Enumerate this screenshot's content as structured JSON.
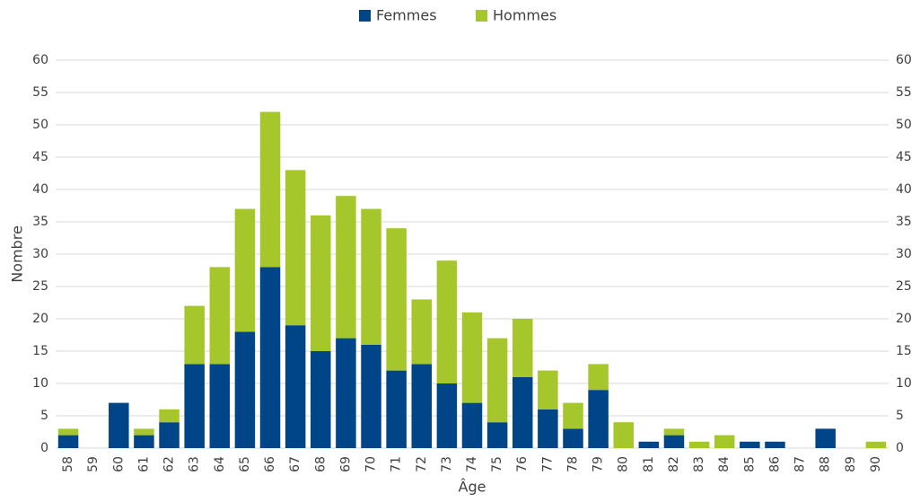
{
  "chart_data": {
    "type": "stacked_bar",
    "x_label": "Âge",
    "y_label": "Nombre",
    "categories": [
      "58",
      "59",
      "60",
      "61",
      "62",
      "63",
      "64",
      "65",
      "66",
      "67",
      "68",
      "69",
      "70",
      "71",
      "72",
      "73",
      "74",
      "75",
      "76",
      "77",
      "78",
      "79",
      "80",
      "81",
      "82",
      "83",
      "84",
      "85",
      "86",
      "87",
      "88",
      "89",
      "90"
    ],
    "series": [
      {
        "name": "Femmes",
        "color": "#004587",
        "values": [
          2,
          0,
          7,
          2,
          4,
          13,
          13,
          18,
          28,
          19,
          15,
          17,
          16,
          12,
          13,
          10,
          7,
          4,
          11,
          6,
          3,
          9,
          0,
          1,
          2,
          0,
          0,
          1,
          1,
          0,
          3,
          0,
          0
        ]
      },
      {
        "name": "Hommes",
        "color": "#a5c72b",
        "values": [
          1,
          0,
          0,
          1,
          2,
          9,
          15,
          19,
          24,
          24,
          21,
          22,
          21,
          22,
          10,
          19,
          14,
          13,
          9,
          6,
          4,
          4,
          4,
          0,
          1,
          1,
          2,
          0,
          0,
          0,
          0,
          0,
          1
        ]
      }
    ],
    "ylim": [
      0,
      60
    ],
    "yticks": [
      0,
      5,
      10,
      15,
      20,
      25,
      30,
      35,
      40,
      45,
      50,
      55,
      60
    ],
    "y2lim": [
      0,
      60
    ],
    "y2ticks": [
      0,
      5,
      10,
      15,
      20,
      25,
      30,
      35,
      40,
      45,
      50,
      55,
      60
    ],
    "grid": true,
    "legend": "top"
  }
}
